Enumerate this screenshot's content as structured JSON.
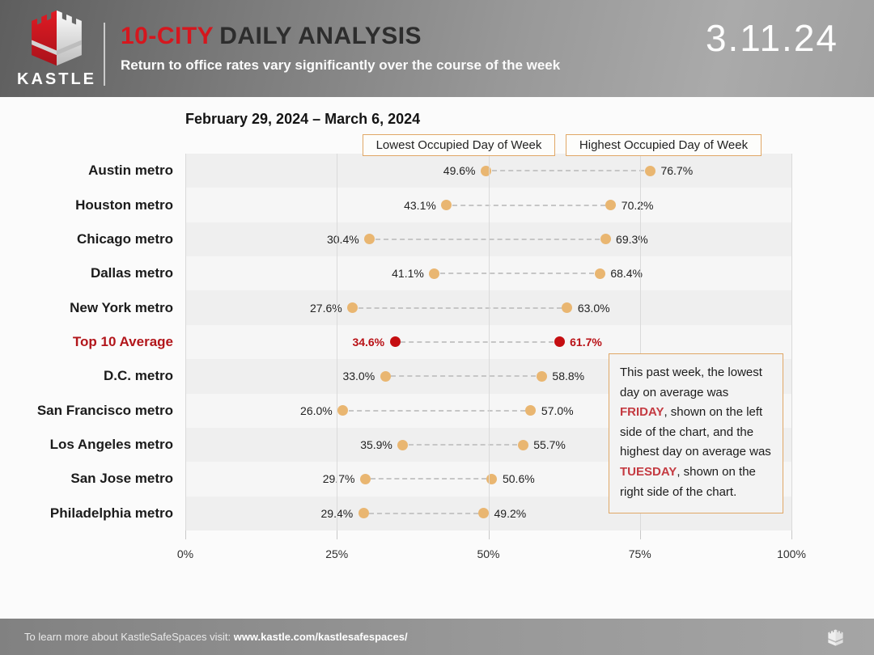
{
  "header": {
    "brand": "KASTLE",
    "title_accent": "10-CITY",
    "title_rest": "DAILY ANALYSIS",
    "subtitle": "Return to office rates vary significantly over the course of the week",
    "date": "3.11.24"
  },
  "chart_data": {
    "type": "dumbbell",
    "title": "February 29, 2024 – March 6, 2024",
    "legend": [
      {
        "label": "Lowest Occupied Day of Week"
      },
      {
        "label": "Highest Occupied Day of Week"
      }
    ],
    "xlim": [
      0,
      100
    ],
    "xlabel_ticks": [
      "0%",
      "25%",
      "50%",
      "75%",
      "100%"
    ],
    "grid": "vertical-lines",
    "rows": [
      {
        "label": "Austin metro",
        "low": 49.6,
        "high": 76.7,
        "highlight": false
      },
      {
        "label": "Houston metro",
        "low": 43.1,
        "high": 70.2,
        "highlight": false
      },
      {
        "label": "Chicago metro",
        "low": 30.4,
        "high": 69.3,
        "highlight": false
      },
      {
        "label": "Dallas metro",
        "low": 41.1,
        "high": 68.4,
        "highlight": false
      },
      {
        "label": "New York metro",
        "low": 27.6,
        "high": 63.0,
        "highlight": false
      },
      {
        "label": "Top 10 Average",
        "low": 34.6,
        "high": 61.7,
        "highlight": true
      },
      {
        "label": "D.C. metro",
        "low": 33.0,
        "high": 58.8,
        "highlight": false
      },
      {
        "label": "San Francisco metro",
        "low": 26.0,
        "high": 57.0,
        "highlight": false
      },
      {
        "label": "Los Angeles metro",
        "low": 35.9,
        "high": 55.7,
        "highlight": false
      },
      {
        "label": "San Jose metro",
        "low": 29.7,
        "high": 50.6,
        "highlight": false
      },
      {
        "label": "Philadelphia metro",
        "low": 29.4,
        "high": 49.2,
        "highlight": false
      }
    ],
    "colors": {
      "dot": "#e9b671",
      "highlight_dot": "#c50e11",
      "highlight_text": "#b2161b",
      "legend_border": "#e0a766",
      "accent_red": "#d5171e"
    }
  },
  "annotation": {
    "segments": [
      {
        "text": "This past week, the lowest day on average was ",
        "style": "normal"
      },
      {
        "text": "FRIDAY",
        "style": "red"
      },
      {
        "text": ", shown on the left side of the chart, and the highest day on average was ",
        "style": "normal"
      },
      {
        "text": "TUESDAY",
        "style": "red"
      },
      {
        "text": ", shown on the right side of the chart.",
        "style": "normal"
      }
    ]
  },
  "footer": {
    "text": "To learn more about KastleSafeSpaces visit: ",
    "link": "www.kastle.com/kastlesafespaces/"
  }
}
